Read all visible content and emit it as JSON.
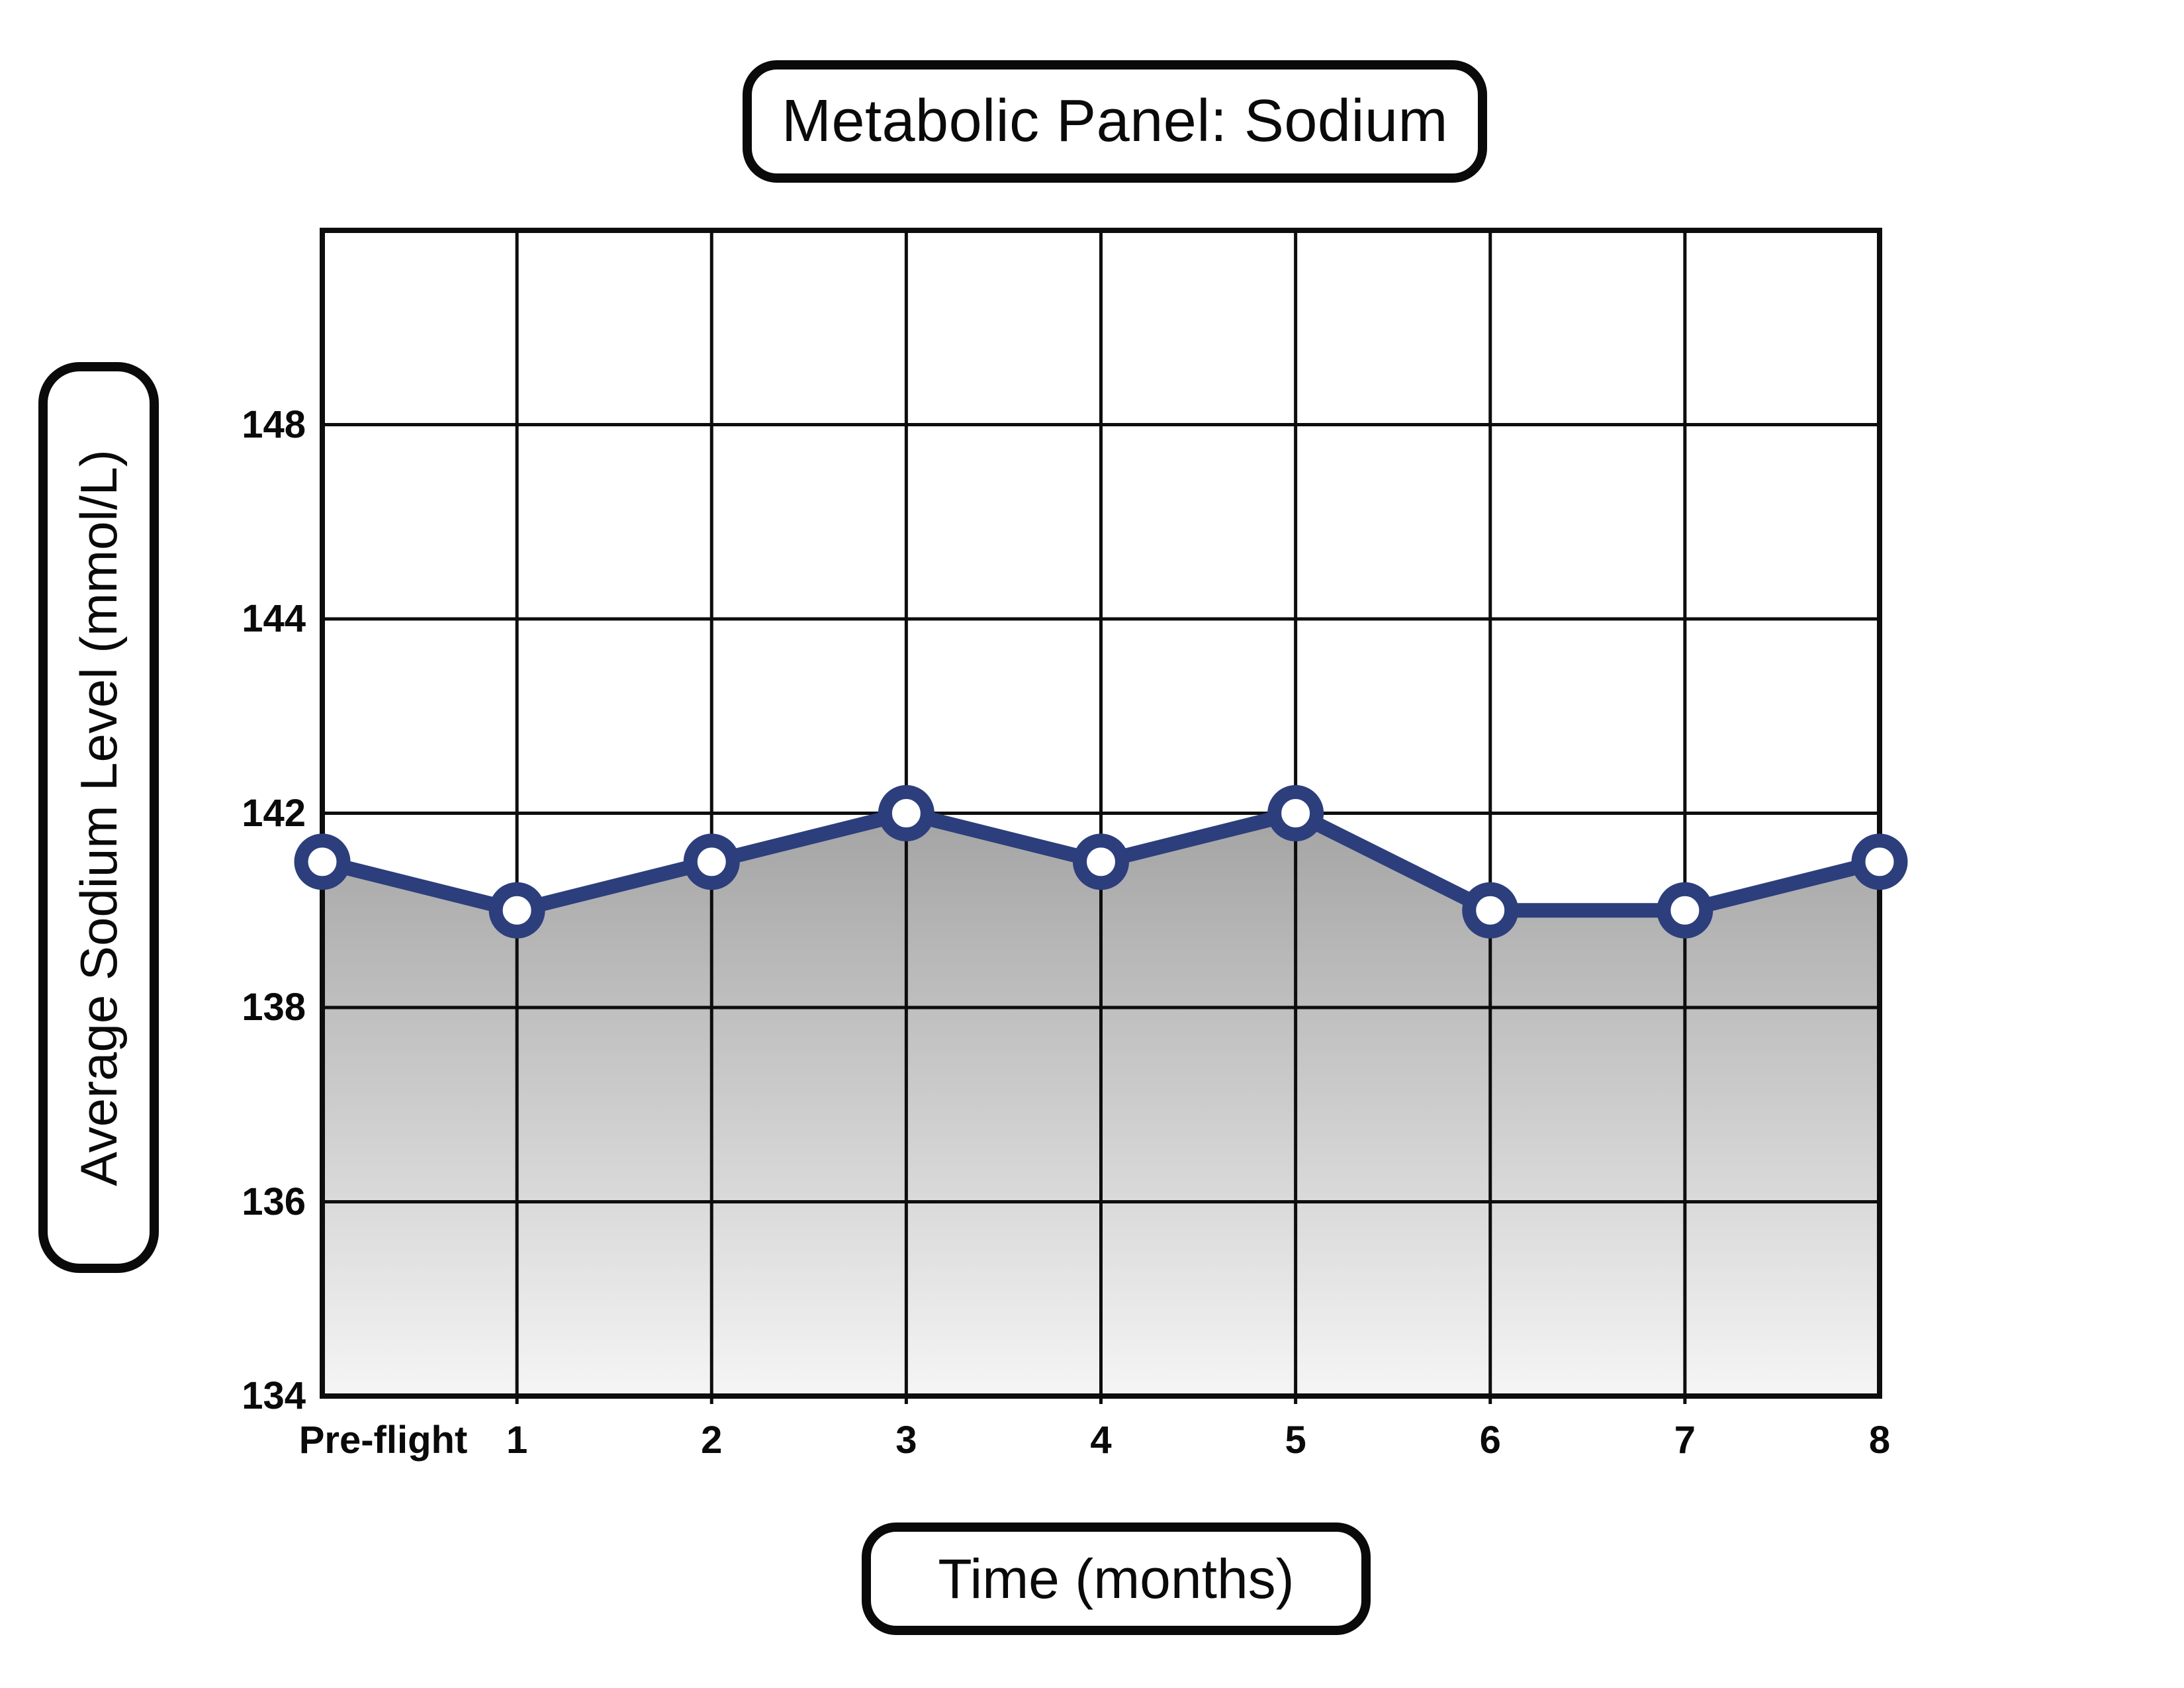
{
  "title": "Metabolic Panel: Sodium",
  "x_axis": {
    "label": "Time (months)",
    "ticks": [
      "Pre-flight",
      "1",
      "2",
      "3",
      "4",
      "5",
      "6",
      "7",
      "8"
    ]
  },
  "y_axis": {
    "label": "Average Sodium Level (mmol/L)",
    "ticks": [
      "148",
      "144",
      "142",
      "138",
      "136",
      "134"
    ],
    "gridline_labels_top_to_bottom": [
      "",
      "148",
      "144",
      "142",
      "138",
      "136",
      "134"
    ]
  },
  "chart_data": {
    "type": "line",
    "title": "Metabolic Panel: Sodium",
    "categories": [
      "Pre-flight",
      "1",
      "2",
      "3",
      "4",
      "5",
      "6",
      "7",
      "8"
    ],
    "values": [
      141,
      140,
      141,
      142,
      141,
      142,
      140,
      140,
      141
    ],
    "series_name": "Average Sodium Level",
    "xlabel": "Time (months)",
    "ylabel": "Average Sodium Level (mmol/L)",
    "y_gridlines_top_to_bottom": [
      null,
      148,
      144,
      142,
      138,
      136,
      134
    ],
    "axis_note": "gridlines evenly spaced; labeled 134,136,138,142,144,148 (140 and 146 omitted)",
    "grid": true,
    "legend": false,
    "marker": "open-circle",
    "area_fill": "gray-gradient-under-line"
  },
  "colors": {
    "line": "#2c3e7c",
    "marker_center": "#ffffff",
    "grid": "#0d0d0d",
    "text": "#0a0a0a",
    "area_top": "#a4a4a4",
    "area_bottom": "#f5f5f5",
    "background": "#ffffff"
  }
}
